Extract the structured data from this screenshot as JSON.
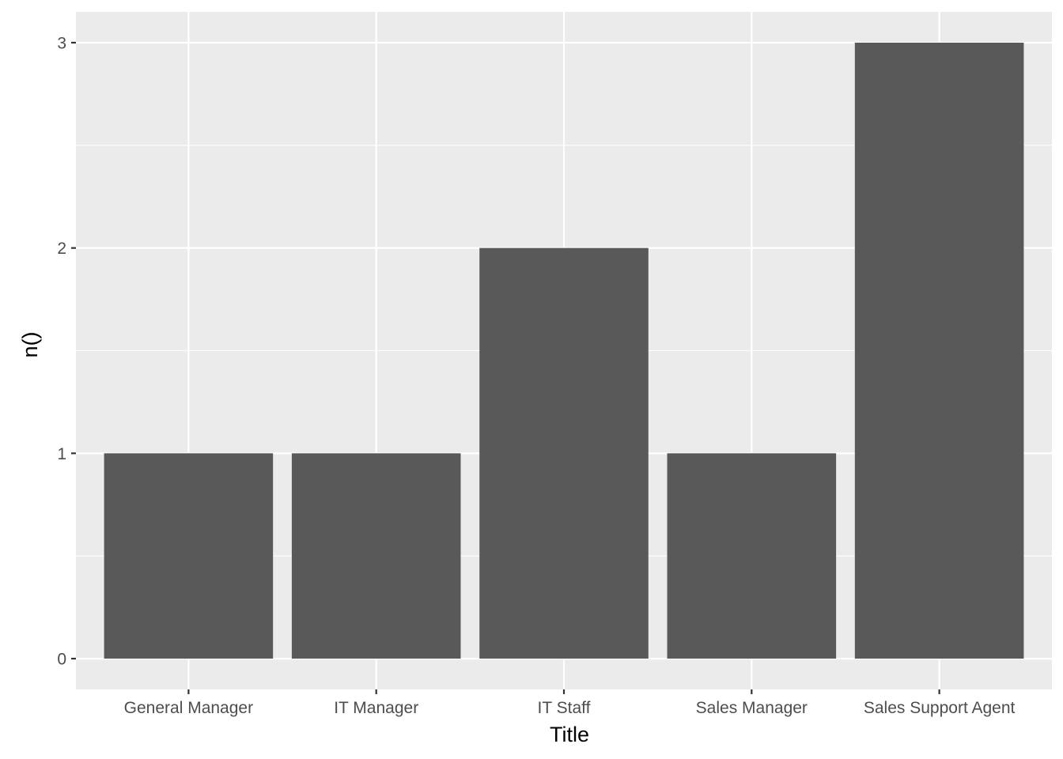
{
  "chart_data": {
    "type": "bar",
    "categories": [
      "General Manager",
      "IT Manager",
      "IT Staff",
      "Sales Manager",
      "Sales Support Agent"
    ],
    "values": [
      1,
      1,
      2,
      1,
      3
    ],
    "xlabel": "Title",
    "ylabel": "n()",
    "ylim": [
      -0.15,
      3.15
    ],
    "yticks": [
      0,
      1,
      2,
      3
    ],
    "grid": true,
    "colors": {
      "panel_background": "#EBEBEB",
      "grid": "#FFFFFF",
      "bar_fill": "#595959",
      "tick_mark": "#333333",
      "tick_label": "#4D4D4D",
      "axis_title": "#000000"
    }
  }
}
